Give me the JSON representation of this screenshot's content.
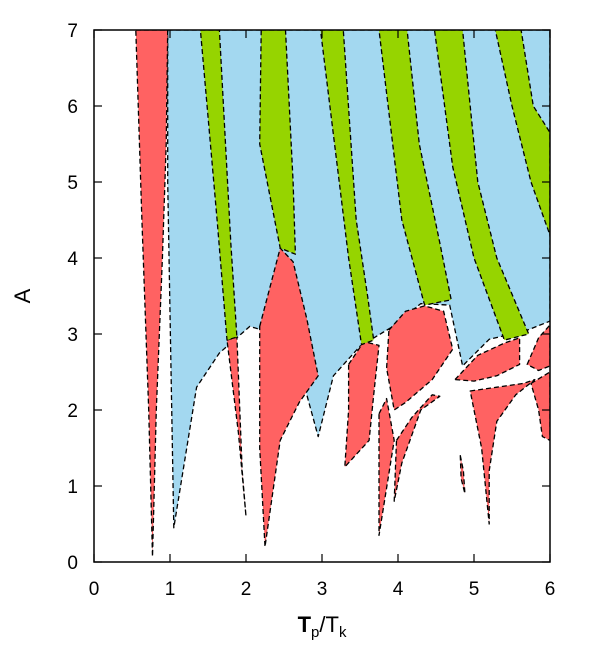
{
  "chart_data": {
    "type": "area",
    "title": "",
    "xlabel": "",
    "ylabel": "A",
    "xlabel_parts": {
      "T1": "T",
      "sub1": "p",
      "slash": "/",
      "T2": "T",
      "sub2": "k"
    },
    "xlim": [
      0,
      6
    ],
    "ylim": [
      0,
      7
    ],
    "xticks": [
      "0",
      "1",
      "2",
      "3",
      "4",
      "5",
      "6"
    ],
    "yticks": [
      "0",
      "1",
      "2",
      "3",
      "4",
      "5",
      "6",
      "7"
    ],
    "grid": false,
    "legend": "none",
    "colors": {
      "red": "#ff6262",
      "blue": "#a3d8f0",
      "green": "#96d400",
      "white": "#ffffff",
      "border": "#000000"
    },
    "regions": [
      {
        "color": "blue",
        "points": [
          [
            0.97,
            7
          ],
          [
            6,
            7
          ],
          [
            6,
            3.17
          ],
          [
            5.7,
            3.05
          ],
          [
            5.2,
            2.93
          ],
          [
            4.85,
            2.58
          ],
          [
            4.68,
            3.38
          ],
          [
            4.3,
            3.4
          ],
          [
            3.9,
            3.08
          ],
          [
            3.5,
            2.84
          ],
          [
            3.15,
            2.45
          ],
          [
            2.95,
            1.65
          ],
          [
            2.8,
            2.2
          ],
          [
            2.5,
            2.97
          ],
          [
            2.05,
            3.1
          ],
          [
            1.65,
            2.75
          ],
          [
            1.35,
            2.3
          ],
          [
            1.05,
            0.45
          ],
          [
            0.97,
            5
          ]
        ]
      },
      {
        "color": "red",
        "points": [
          [
            0.55,
            7
          ],
          [
            0.97,
            7
          ],
          [
            0.95,
            5.5
          ],
          [
            0.9,
            4
          ],
          [
            0.82,
            2
          ],
          [
            0.77,
            0.07
          ],
          [
            0.72,
            2
          ],
          [
            0.63,
            4.5
          ]
        ]
      },
      {
        "color": "red",
        "points": [
          [
            1.75,
            2.92
          ],
          [
            1.88,
            2.96
          ],
          [
            1.95,
            1.2
          ],
          [
            2.0,
            0.6
          ],
          [
            1.9,
            1.7
          ]
        ]
      },
      {
        "color": "red",
        "points": [
          [
            2.18,
            3.1
          ],
          [
            2.45,
            4.13
          ],
          [
            2.62,
            3.95
          ],
          [
            2.8,
            3.2
          ],
          [
            2.95,
            2.45
          ],
          [
            2.7,
            2.1
          ],
          [
            2.45,
            1.6
          ],
          [
            2.25,
            0.2
          ],
          [
            2.18,
            1.5
          ]
        ]
      },
      {
        "color": "red",
        "points": [
          [
            3.35,
            2.6
          ],
          [
            3.55,
            2.9
          ],
          [
            3.75,
            2.85
          ],
          [
            3.68,
            2.2
          ],
          [
            3.62,
            1.6
          ],
          [
            3.3,
            1.25
          ],
          [
            3.35,
            2.0
          ]
        ]
      },
      {
        "color": "red",
        "points": [
          [
            3.88,
            3.05
          ],
          [
            4.1,
            3.3
          ],
          [
            4.35,
            3.37
          ],
          [
            4.6,
            3.3
          ],
          [
            4.72,
            2.8
          ],
          [
            4.45,
            2.4
          ],
          [
            4.1,
            2.1
          ],
          [
            3.95,
            2.0
          ],
          [
            3.85,
            2.55
          ]
        ]
      },
      {
        "color": "red",
        "points": [
          [
            3.75,
            1.95
          ],
          [
            3.85,
            2.15
          ],
          [
            3.95,
            1.6
          ],
          [
            3.75,
            0.35
          ]
        ]
      },
      {
        "color": "red",
        "points": [
          [
            3.98,
            1.6
          ],
          [
            4.18,
            1.9
          ],
          [
            4.45,
            2.2
          ],
          [
            4.55,
            2.18
          ],
          [
            4.3,
            2.0
          ],
          [
            4.05,
            1.3
          ],
          [
            3.95,
            0.8
          ]
        ]
      },
      {
        "color": "red",
        "points": [
          [
            4.82,
            1.4
          ],
          [
            4.86,
            1.2
          ],
          [
            4.88,
            0.9
          ],
          [
            4.83,
            1.1
          ]
        ]
      },
      {
        "color": "red",
        "points": [
          [
            4.75,
            2.4
          ],
          [
            5.05,
            2.72
          ],
          [
            5.4,
            2.88
          ],
          [
            5.6,
            2.95
          ],
          [
            5.6,
            2.6
          ],
          [
            5.3,
            2.45
          ],
          [
            5.0,
            2.38
          ]
        ]
      },
      {
        "color": "red",
        "points": [
          [
            4.95,
            2.25
          ],
          [
            5.3,
            2.3
          ],
          [
            5.65,
            2.35
          ],
          [
            5.8,
            2.4
          ],
          [
            5.55,
            2.2
          ],
          [
            5.3,
            1.85
          ],
          [
            5.2,
            1.2
          ],
          [
            5.2,
            0.5
          ],
          [
            5.1,
            1.5
          ]
        ]
      },
      {
        "color": "red",
        "points": [
          [
            5.7,
            2.6
          ],
          [
            5.85,
            2.95
          ],
          [
            6,
            3.12
          ],
          [
            6,
            2.58
          ],
          [
            5.85,
            2.52
          ]
        ]
      },
      {
        "color": "red",
        "points": [
          [
            5.75,
            2.35
          ],
          [
            6,
            2.5
          ],
          [
            6,
            1.6
          ],
          [
            5.9,
            1.65
          ],
          [
            5.85,
            2.0
          ]
        ]
      },
      {
        "color": "green",
        "points": [
          [
            1.4,
            7
          ],
          [
            1.65,
            7
          ],
          [
            1.8,
            4.2
          ],
          [
            1.88,
            2.96
          ],
          [
            1.75,
            2.92
          ],
          [
            1.62,
            4.5
          ]
        ]
      },
      {
        "color": "green",
        "points": [
          [
            2.2,
            7
          ],
          [
            2.52,
            7
          ],
          [
            2.62,
            5.0
          ],
          [
            2.65,
            4.05
          ],
          [
            2.45,
            4.13
          ],
          [
            2.18,
            5.5
          ]
        ]
      },
      {
        "color": "green",
        "points": [
          [
            2.98,
            7
          ],
          [
            3.28,
            7
          ],
          [
            3.45,
            4.5
          ],
          [
            3.6,
            3.5
          ],
          [
            3.68,
            2.92
          ],
          [
            3.52,
            2.86
          ],
          [
            3.35,
            4.0
          ]
        ]
      },
      {
        "color": "green",
        "points": [
          [
            3.75,
            7
          ],
          [
            4.12,
            7
          ],
          [
            4.28,
            5.5
          ],
          [
            4.55,
            4.2
          ],
          [
            4.7,
            3.45
          ],
          [
            4.35,
            3.38
          ],
          [
            4.05,
            4.5
          ]
        ]
      },
      {
        "color": "green",
        "points": [
          [
            4.48,
            7
          ],
          [
            4.85,
            7
          ],
          [
            5.05,
            5.0
          ],
          [
            5.3,
            4.0
          ],
          [
            5.72,
            3.0
          ],
          [
            5.4,
            2.92
          ],
          [
            5.0,
            4.0
          ],
          [
            4.72,
            5.2
          ]
        ]
      },
      {
        "color": "green",
        "points": [
          [
            5.28,
            7
          ],
          [
            5.62,
            7
          ],
          [
            5.78,
            6.0
          ],
          [
            6,
            5.65
          ],
          [
            6,
            4.3
          ],
          [
            5.75,
            5.0
          ],
          [
            5.5,
            6.0
          ]
        ]
      }
    ]
  }
}
